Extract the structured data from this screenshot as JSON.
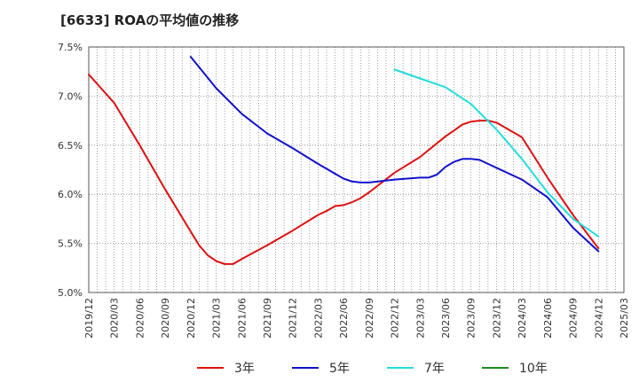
{
  "chart_data": {
    "type": "line",
    "title": "[6633]  ROAの平均値の推移",
    "y_ticks": [
      "7.5%",
      "7.0%",
      "6.5%",
      "6.0%",
      "5.5%",
      "5.0%"
    ],
    "ylim": [
      5.0,
      7.5
    ],
    "grid": true,
    "legend_placement": "bottom",
    "x_ticks": [
      "2019/12",
      "2020/03",
      "2020/06",
      "2020/09",
      "2020/12",
      "2021/03",
      "2021/06",
      "2021/09",
      "2021/12",
      "2022/03",
      "2022/06",
      "2022/09",
      "2022/12",
      "2023/03",
      "2023/06",
      "2023/09",
      "2023/12",
      "2024/03",
      "2024/06",
      "2024/09",
      "2024/12",
      "2025/03"
    ],
    "series": [
      {
        "name": "3年",
        "color": "#dd1111",
        "x": [
          "2019/12",
          "2020/03",
          "2020/06",
          "2020/09",
          "2020/12",
          "2021/01",
          "2021/02",
          "2021/03",
          "2021/04",
          "2021/05",
          "2021/06",
          "2021/09",
          "2021/12",
          "2022/03",
          "2022/04",
          "2022/05",
          "2022/06",
          "2022/07",
          "2022/08",
          "2022/09",
          "2022/12",
          "2023/03",
          "2023/06",
          "2023/07",
          "2023/08",
          "2023/09",
          "2023/10",
          "2023/11",
          "2023/12",
          "2024/03",
          "2024/06",
          "2024/09",
          "2024/12"
        ],
        "values": [
          7.22,
          6.93,
          6.5,
          6.05,
          5.62,
          5.48,
          5.38,
          5.32,
          5.29,
          5.29,
          5.34,
          5.48,
          5.63,
          5.79,
          5.83,
          5.88,
          5.89,
          5.92,
          5.96,
          6.02,
          6.22,
          6.38,
          6.59,
          6.65,
          6.71,
          6.74,
          6.75,
          6.75,
          6.73,
          6.58,
          6.17,
          5.79,
          5.45
        ]
      },
      {
        "name": "5年",
        "color": "#1111cc",
        "x": [
          "2020/12",
          "2021/03",
          "2021/06",
          "2021/09",
          "2021/12",
          "2022/03",
          "2022/06",
          "2022/07",
          "2022/08",
          "2022/09",
          "2022/12",
          "2023/03",
          "2023/04",
          "2023/05",
          "2023/06",
          "2023/07",
          "2023/08",
          "2023/09",
          "2023/10",
          "2023/11",
          "2023/12",
          "2024/03",
          "2024/06",
          "2024/09",
          "2024/12"
        ],
        "values": [
          7.4,
          7.08,
          6.82,
          6.62,
          6.47,
          6.31,
          6.16,
          6.13,
          6.12,
          6.12,
          6.15,
          6.17,
          6.17,
          6.2,
          6.28,
          6.33,
          6.36,
          6.36,
          6.35,
          6.31,
          6.27,
          6.15,
          5.97,
          5.66,
          5.42
        ]
      },
      {
        "name": "7年",
        "color": "#22dddd",
        "x": [
          "2022/12",
          "2023/03",
          "2023/06",
          "2023/09",
          "2023/12",
          "2024/03",
          "2024/06",
          "2024/09",
          "2024/12"
        ],
        "values": [
          7.27,
          7.18,
          7.09,
          6.92,
          6.66,
          6.36,
          6.02,
          5.75,
          5.57
        ]
      },
      {
        "name": "10年",
        "color": "#228822",
        "x": [],
        "values": []
      }
    ]
  }
}
